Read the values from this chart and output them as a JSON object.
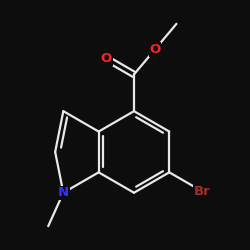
{
  "background": "#0d0d0d",
  "bond_color": "#e8e8e8",
  "bond_lw": 1.6,
  "dbo": 0.12,
  "atom_colors": {
    "O": "#ff2020",
    "N": "#3333ff",
    "Br": "#a03030",
    "C": "#e8e8e8"
  },
  "font_size": 9.5,
  "bl": 1.0
}
